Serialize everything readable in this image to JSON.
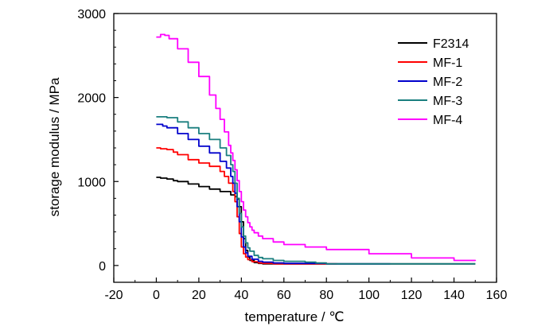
{
  "chart_data": {
    "type": "line",
    "xlabel": "temperature / ℃",
    "ylabel": "storage modulus / MPa",
    "xlim": [
      -20,
      160
    ],
    "ylim": [
      -200,
      3000
    ],
    "xticks": [
      -20,
      0,
      20,
      40,
      60,
      80,
      100,
      120,
      140,
      160
    ],
    "yticks": [
      0,
      1000,
      2000,
      3000
    ],
    "grid": false,
    "legend_position": "top-right",
    "series": [
      {
        "name": "F2314",
        "color": "#000000",
        "x": [
          0,
          2,
          5,
          8,
          10,
          15,
          20,
          25,
          30,
          35,
          37,
          38,
          39,
          40,
          41,
          42,
          43,
          44,
          46,
          48,
          50,
          55,
          60,
          80,
          100,
          130,
          150
        ],
        "y": [
          1050,
          1040,
          1030,
          1010,
          1000,
          970,
          940,
          910,
          880,
          840,
          820,
          790,
          700,
          520,
          320,
          180,
          100,
          60,
          35,
          25,
          20,
          20,
          20,
          20,
          20,
          20,
          20
        ]
      },
      {
        "name": "MF-1",
        "color": "#ff0000",
        "x": [
          0,
          2,
          5,
          8,
          10,
          15,
          20,
          25,
          30,
          32,
          34,
          36,
          37,
          38,
          39,
          40,
          41,
          42,
          43,
          45,
          48,
          50,
          55,
          60,
          70,
          85
        ],
        "y": [
          1400,
          1390,
          1380,
          1350,
          1320,
          1260,
          1220,
          1180,
          1120,
          1060,
          980,
          880,
          760,
          580,
          380,
          220,
          140,
          100,
          70,
          45,
          30,
          25,
          20,
          20,
          20,
          20
        ]
      },
      {
        "name": "MF-2",
        "color": "#0000cc",
        "x": [
          0,
          3,
          5,
          10,
          15,
          20,
          25,
          30,
          33,
          35,
          36,
          37,
          38,
          39,
          40,
          41,
          42,
          43,
          45,
          48,
          50,
          55,
          60,
          80,
          100,
          110
        ],
        "y": [
          1680,
          1660,
          1640,
          1570,
          1500,
          1420,
          1340,
          1240,
          1160,
          1060,
          980,
          860,
          700,
          520,
          340,
          220,
          150,
          110,
          75,
          50,
          40,
          30,
          25,
          20,
          20,
          20
        ]
      },
      {
        "name": "MF-3",
        "color": "#1a7f7f",
        "x": [
          0,
          3,
          5,
          10,
          15,
          20,
          25,
          30,
          33,
          35,
          36,
          37,
          38,
          39,
          40,
          41,
          42,
          43,
          44,
          46,
          48,
          50,
          55,
          60,
          70,
          75,
          80,
          100,
          120,
          150
        ],
        "y": [
          1770,
          1770,
          1760,
          1710,
          1640,
          1570,
          1500,
          1400,
          1310,
          1200,
          1120,
          980,
          800,
          620,
          460,
          350,
          270,
          210,
          170,
          120,
          95,
          80,
          60,
          50,
          40,
          30,
          20,
          20,
          20,
          20
        ]
      },
      {
        "name": "MF-4",
        "color": "#ff00ff",
        "x": [
          0,
          2,
          4,
          6,
          10,
          15,
          20,
          25,
          28,
          30,
          32,
          34,
          35,
          36,
          37,
          38,
          39,
          40,
          41,
          42,
          43,
          44,
          45,
          46,
          48,
          50,
          55,
          60,
          70,
          80,
          100,
          120,
          140,
          150
        ],
        "y": [
          2720,
          2750,
          2740,
          2700,
          2580,
          2420,
          2250,
          2030,
          1870,
          1740,
          1590,
          1430,
          1340,
          1250,
          1140,
          1010,
          880,
          760,
          660,
          580,
          510,
          460,
          420,
          390,
          350,
          320,
          280,
          250,
          220,
          190,
          140,
          90,
          60,
          55
        ]
      }
    ]
  }
}
